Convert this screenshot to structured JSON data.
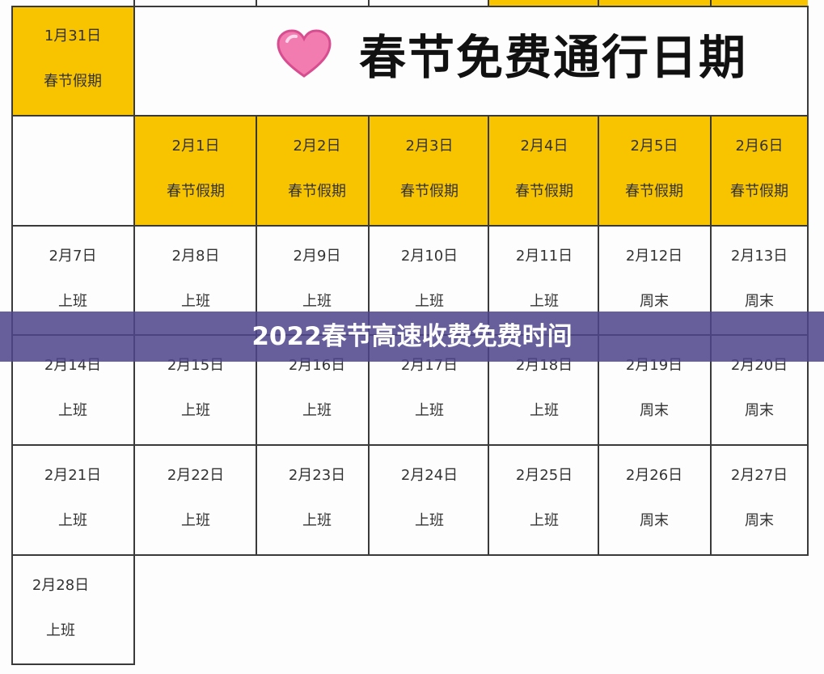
{
  "title": {
    "icon": "heart-icon",
    "text": "春节免费通行日期"
  },
  "banner": {
    "text": "2022春节高速收费免费时间"
  },
  "colors": {
    "holiday": "#f8c400",
    "banner": "#4e448c",
    "grid": "#3a3a3a"
  },
  "first_cell": {
    "date": "1月31日",
    "status": "春节假期"
  },
  "rows": [
    [
      {
        "date": "",
        "status": ""
      },
      {
        "date": "2月1日",
        "status": "春节假期"
      },
      {
        "date": "2月2日",
        "status": "春节假期"
      },
      {
        "date": "2月3日",
        "status": "春节假期"
      },
      {
        "date": "2月4日",
        "status": "春节假期"
      },
      {
        "date": "2月5日",
        "status": "春节假期"
      },
      {
        "date": "2月6日",
        "status": "春节假期"
      }
    ],
    [
      {
        "date": "2月7日",
        "status": "上班"
      },
      {
        "date": "2月8日",
        "status": "上班"
      },
      {
        "date": "2月9日",
        "status": "上班"
      },
      {
        "date": "2月10日",
        "status": "上班"
      },
      {
        "date": "2月11日",
        "status": "上班"
      },
      {
        "date": "2月12日",
        "status": "周末"
      },
      {
        "date": "2月13日",
        "status": "周末"
      }
    ],
    [
      {
        "date": "2月14日",
        "status": "上班"
      },
      {
        "date": "2月15日",
        "status": "上班"
      },
      {
        "date": "2月16日",
        "status": "上班"
      },
      {
        "date": "2月17日",
        "status": "上班"
      },
      {
        "date": "2月18日",
        "status": "上班"
      },
      {
        "date": "2月19日",
        "status": "周末"
      },
      {
        "date": "2月20日",
        "status": "周末"
      }
    ],
    [
      {
        "date": "2月21日",
        "status": "上班"
      },
      {
        "date": "2月22日",
        "status": "上班"
      },
      {
        "date": "2月23日",
        "status": "上班"
      },
      {
        "date": "2月24日",
        "status": "上班"
      },
      {
        "date": "2月25日",
        "status": "上班"
      },
      {
        "date": "2月26日",
        "status": "周末"
      },
      {
        "date": "2月27日",
        "status": "周末"
      }
    ],
    [
      {
        "date": "2月28日",
        "status": "上班"
      }
    ]
  ]
}
